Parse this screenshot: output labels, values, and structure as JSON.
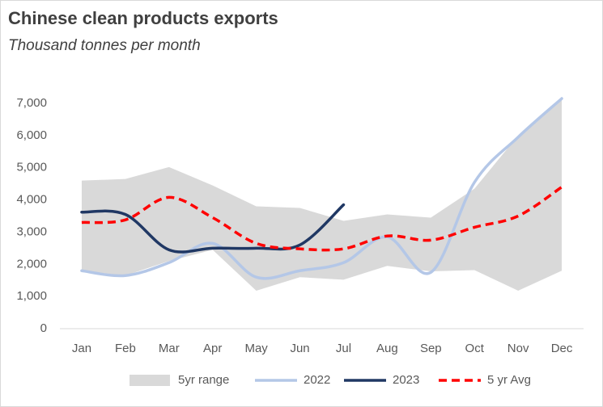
{
  "chart_data": {
    "type": "line",
    "title": "Chinese clean products exports",
    "subtitle": "Thousand tonnes per month",
    "categories": [
      "Jan",
      "Feb",
      "Mar",
      "Apr",
      "May",
      "Jun",
      "Jul",
      "Aug",
      "Sep",
      "Oct",
      "Nov",
      "Dec"
    ],
    "ylim": [
      0,
      7000
    ],
    "yticks": [
      0,
      {
        "value": 1000,
        "label": "1,000"
      },
      {
        "value": 2000,
        "label": "2,000"
      },
      {
        "value": 3000,
        "label": "3,000"
      },
      {
        "value": 4000,
        "label": "4,000"
      },
      {
        "value": 5000,
        "label": "5,000"
      },
      {
        "value": 6000,
        "label": "6,000"
      },
      {
        "value": 7000,
        "label": "7,000"
      }
    ],
    "legend": "bottom",
    "series": [
      {
        "name": "5yr range",
        "kind": "range",
        "color": "#d9d9d9",
        "values": [
          4600,
          4650,
          5020,
          4450,
          3800,
          3750,
          3350,
          3550,
          3450,
          4350,
          6000,
          7150
        ],
        "lower": [
          1800,
          1650,
          2100,
          2450,
          1180,
          1600,
          1520,
          1950,
          1780,
          1820,
          1180,
          1800
        ]
      },
      {
        "name": "2022",
        "kind": "line",
        "color": "#b4c7e7",
        "values": [
          1800,
          1650,
          2050,
          2650,
          1600,
          1800,
          2050,
          2850,
          1750,
          4550,
          5950,
          7150
        ]
      },
      {
        "name": "2023",
        "kind": "line",
        "color": "#203864",
        "values": [
          3620,
          3550,
          2450,
          2500,
          2500,
          2600,
          3850,
          null,
          null,
          null,
          null,
          null
        ]
      },
      {
        "name": "5 yr Avg",
        "kind": "dashed",
        "color": "#ff0000",
        "values": [
          3300,
          3380,
          4080,
          3450,
          2650,
          2480,
          2480,
          2880,
          2750,
          3150,
          3500,
          4400
        ]
      }
    ]
  }
}
